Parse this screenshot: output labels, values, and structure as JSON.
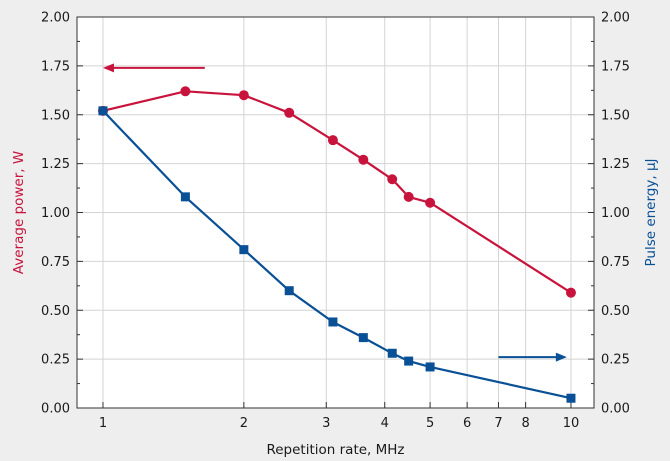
{
  "chart_data": {
    "type": "line",
    "xlabel": "Repetition rate, MHz",
    "xscale": "log",
    "xlim": [
      0.88,
      11.2
    ],
    "x_ticks": [
      1,
      2,
      3,
      4,
      5,
      6,
      7,
      8,
      10
    ],
    "grid": true,
    "y_left": {
      "label": "Average power, W",
      "color": "#c8143c",
      "lim": [
        0,
        2
      ],
      "ticks": [
        "0.00",
        "0.25",
        "0.50",
        "0.75",
        "1.00",
        "1.25",
        "1.50",
        "1.75",
        "2.00"
      ]
    },
    "y_right": {
      "label": "Pulse energy, μJ",
      "color": "#0a5096",
      "lim": [
        0,
        2
      ],
      "ticks": [
        "0.00",
        "0.25",
        "0.50",
        "0.75",
        "1.00",
        "1.25",
        "1.50",
        "1.75",
        "2.00"
      ]
    },
    "series": [
      {
        "axis": "left",
        "marker": "circle",
        "color": "#c8143c",
        "x": [
          1,
          1.5,
          2,
          2.5,
          3.1,
          3.6,
          4.15,
          4.5,
          5,
          10
        ],
        "y": [
          1.52,
          1.62,
          1.6,
          1.51,
          1.37,
          1.27,
          1.17,
          1.08,
          1.05,
          0.59
        ]
      },
      {
        "axis": "right",
        "marker": "square",
        "color": "#0a5096",
        "x": [
          1,
          1.5,
          2,
          2.5,
          3.1,
          3.6,
          4.15,
          4.5,
          5,
          10
        ],
        "y": [
          1.52,
          1.08,
          0.81,
          0.6,
          0.44,
          0.36,
          0.28,
          0.24,
          0.21,
          0.05
        ]
      }
    ],
    "annotations": [
      {
        "type": "arrow",
        "direction": "left",
        "color": "#c8143c",
        "x_from": 1.65,
        "x_to": 1.0,
        "y": 1.74,
        "axis": "left"
      },
      {
        "type": "arrow",
        "direction": "right",
        "color": "#0a5096",
        "x_from": 7.0,
        "x_to": 9.8,
        "y": 0.26,
        "axis": "right"
      }
    ]
  }
}
